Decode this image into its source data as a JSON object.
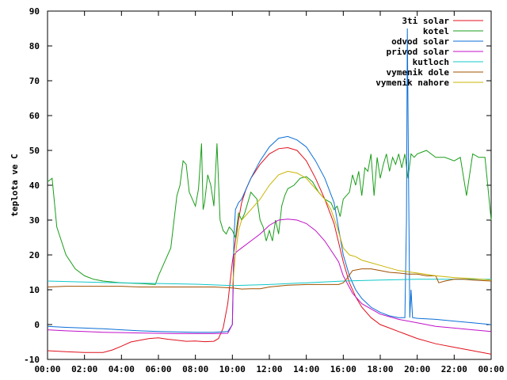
{
  "chart_data": {
    "type": "line",
    "title": "",
    "xlabel": "",
    "ylabel": "teplota ve C",
    "xlim": [
      "00:00",
      "24:00"
    ],
    "ylim": [
      -10,
      90
    ],
    "x_ticks": [
      "00:00",
      "02:00",
      "04:00",
      "06:00",
      "08:00",
      "10:00",
      "12:00",
      "14:00",
      "16:00",
      "18:00",
      "20:00",
      "22:00",
      "00:00"
    ],
    "y_ticks": [
      "-10",
      "0",
      "10",
      "20",
      "30",
      "40",
      "50",
      "60",
      "70",
      "80",
      "90"
    ],
    "grid": false,
    "legend_position": "top-right",
    "series": [
      {
        "name": "3ti solar",
        "color": "#e0101c",
        "x": [
          "00:00",
          "01:00",
          "02:00",
          "03:00",
          "03:30",
          "04:00",
          "04:30",
          "05:00",
          "05:30",
          "06:00",
          "06:30",
          "07:00",
          "07:30",
          "08:00",
          "08:30",
          "09:00",
          "09:15",
          "09:30",
          "09:45",
          "10:00",
          "10:10",
          "10:20",
          "10:30",
          "10:45",
          "11:00",
          "11:30",
          "12:00",
          "12:30",
          "13:00",
          "13:30",
          "14:00",
          "14:30",
          "15:00",
          "15:30",
          "16:00",
          "16:20",
          "16:40",
          "17:00",
          "17:30",
          "18:00",
          "18:30",
          "19:00",
          "20:00",
          "21:00",
          "22:00",
          "23:00",
          "24:00"
        ],
        "values": [
          -7.5,
          -7.8,
          -8.0,
          -8.0,
          -7.3,
          -6.2,
          -5.0,
          -4.5,
          -4.0,
          -3.8,
          -4.2,
          -4.5,
          -4.8,
          -4.7,
          -4.9,
          -4.8,
          -4.0,
          -1.0,
          6.0,
          18.0,
          24.0,
          30.0,
          35.0,
          39.0,
          42.0,
          46.0,
          49.0,
          50.5,
          50.8,
          50.0,
          47.0,
          42.0,
          36.0,
          29.0,
          18.0,
          12.0,
          8.0,
          5.0,
          2.0,
          0.0,
          -1.0,
          -2.0,
          -4.0,
          -5.5,
          -6.5,
          -7.5,
          -8.5
        ]
      },
      {
        "name": "kotel",
        "color": "#1a9e1a",
        "x": [
          "00:00",
          "00:15",
          "00:30",
          "01:00",
          "01:30",
          "02:00",
          "02:30",
          "03:00",
          "04:00",
          "05:00",
          "05:50",
          "06:00",
          "06:20",
          "06:40",
          "07:00",
          "07:10",
          "07:20",
          "07:30",
          "07:40",
          "07:50",
          "08:00",
          "08:10",
          "08:20",
          "08:25",
          "08:30",
          "08:40",
          "08:50",
          "09:00",
          "09:10",
          "09:20",
          "09:30",
          "09:40",
          "09:50",
          "10:00",
          "10:10",
          "10:20",
          "10:30",
          "10:40",
          "11:00",
          "11:20",
          "11:30",
          "11:40",
          "11:50",
          "12:00",
          "12:10",
          "12:20",
          "12:30",
          "12:40",
          "12:50",
          "13:00",
          "13:20",
          "13:40",
          "14:00",
          "14:20",
          "14:40",
          "15:00",
          "15:20",
          "15:30",
          "15:40",
          "15:50",
          "16:00",
          "16:10",
          "16:20",
          "16:30",
          "16:40",
          "16:50",
          "17:00",
          "17:10",
          "17:20",
          "17:30",
          "17:40",
          "17:50",
          "18:00",
          "18:10",
          "18:20",
          "18:30",
          "18:40",
          "18:50",
          "19:00",
          "19:10",
          "19:20",
          "19:30",
          "19:40",
          "19:50",
          "20:00",
          "20:30",
          "21:00",
          "21:30",
          "22:00",
          "22:20",
          "22:40",
          "23:00",
          "23:20",
          "23:40",
          "24:00"
        ],
        "values": [
          41.0,
          42.0,
          28.0,
          20.0,
          16.0,
          14.0,
          13.0,
          12.5,
          12.0,
          11.8,
          11.5,
          14.0,
          18.0,
          22.0,
          37.0,
          40.0,
          47.0,
          46.0,
          38.0,
          36.0,
          34.0,
          39.0,
          52.0,
          33.0,
          35.0,
          43.0,
          40.0,
          34.0,
          52.0,
          30.0,
          27.0,
          26.0,
          28.0,
          27.0,
          25.0,
          32.0,
          30.0,
          32.0,
          38.0,
          36.0,
          30.0,
          28.0,
          24.0,
          27.0,
          24.0,
          30.0,
          26.0,
          34.0,
          37.0,
          39.0,
          40.0,
          42.0,
          42.5,
          41.0,
          38.0,
          36.0,
          35.0,
          33.0,
          34.0,
          31.0,
          36.0,
          37.0,
          38.0,
          43.0,
          40.0,
          44.0,
          37.0,
          45.0,
          44.0,
          49.0,
          37.0,
          48.0,
          42.0,
          46.0,
          49.0,
          44.0,
          48.0,
          46.0,
          49.0,
          45.0,
          49.0,
          42.0,
          49.0,
          48.0,
          49.0,
          50.0,
          48.0,
          48.0,
          47.0,
          48.0,
          37.0,
          49.0,
          48.0,
          48.0,
          30.0
        ]
      },
      {
        "name": "odvod solar",
        "color": "#0a6ed8",
        "x": [
          "00:00",
          "01:00",
          "02:00",
          "03:00",
          "04:00",
          "05:00",
          "06:00",
          "07:00",
          "08:00",
          "09:00",
          "09:45",
          "10:00",
          "10:05",
          "10:10",
          "10:20",
          "10:30",
          "10:45",
          "11:00",
          "11:30",
          "12:00",
          "12:30",
          "13:00",
          "13:30",
          "14:00",
          "14:30",
          "15:00",
          "15:30",
          "16:00",
          "16:20",
          "16:40",
          "17:00",
          "17:30",
          "18:00",
          "18:30",
          "19:00",
          "19:20",
          "19:25",
          "19:28",
          "19:32",
          "19:36",
          "19:40",
          "19:45",
          "20:00",
          "21:00",
          "22:00",
          "23:00",
          "24:00"
        ],
        "values": [
          -0.5,
          -0.8,
          -1.0,
          -1.2,
          -1.5,
          -1.8,
          -2.0,
          -2.1,
          -2.2,
          -2.2,
          -2.0,
          0.0,
          25.0,
          33.0,
          35.0,
          36.0,
          39.0,
          42.0,
          47.0,
          51.0,
          53.5,
          54.0,
          53.0,
          51.0,
          47.0,
          42.0,
          35.0,
          20.0,
          14.0,
          10.0,
          7.5,
          5.0,
          3.5,
          2.5,
          2.0,
          2.0,
          30.0,
          85.0,
          40.0,
          2.0,
          10.0,
          2.0,
          1.8,
          1.5,
          1.0,
          0.5,
          0.0
        ]
      },
      {
        "name": "privod solar",
        "color": "#c010c8",
        "x": [
          "00:00",
          "01:00",
          "02:00",
          "03:00",
          "04:00",
          "05:00",
          "06:00",
          "07:00",
          "08:00",
          "09:00",
          "09:45",
          "10:00",
          "10:05",
          "10:15",
          "10:30",
          "11:00",
          "11:30",
          "12:00",
          "12:30",
          "13:00",
          "13:30",
          "14:00",
          "14:30",
          "15:00",
          "15:30",
          "15:45",
          "16:00",
          "16:30",
          "17:00",
          "18:00",
          "19:00",
          "20:00",
          "21:00",
          "22:00",
          "23:00",
          "24:00"
        ],
        "values": [
          -1.5,
          -1.8,
          -2.0,
          -2.2,
          -2.3,
          -2.4,
          -2.5,
          -2.6,
          -2.6,
          -2.6,
          -2.5,
          0.0,
          20.0,
          21.0,
          22.0,
          24.0,
          26.0,
          28.5,
          30.0,
          30.3,
          30.0,
          29.0,
          27.0,
          24.0,
          20.0,
          18.0,
          14.0,
          9.0,
          6.0,
          3.0,
          1.5,
          0.5,
          -0.5,
          -1.0,
          -1.5,
          -2.0
        ]
      },
      {
        "name": "kutloch",
        "color": "#10c8c8",
        "x": [
          "00:00",
          "02:00",
          "04:00",
          "06:00",
          "08:00",
          "10:00",
          "12:00",
          "14:00",
          "16:00",
          "18:00",
          "20:00",
          "22:00",
          "24:00"
        ],
        "values": [
          12.5,
          12.2,
          12.0,
          11.8,
          11.6,
          11.2,
          11.5,
          12.0,
          12.5,
          12.8,
          13.0,
          13.0,
          13.0
        ]
      },
      {
        "name": "vymenik dole",
        "color": "#a05000",
        "x": [
          "00:00",
          "01:00",
          "02:00",
          "03:00",
          "04:00",
          "05:00",
          "06:00",
          "07:00",
          "08:00",
          "09:00",
          "10:00",
          "10:30",
          "11:00",
          "11:30",
          "12:00",
          "13:00",
          "14:00",
          "15:00",
          "15:30",
          "15:45",
          "16:00",
          "16:10",
          "16:30",
          "17:00",
          "17:30",
          "18:00",
          "18:30",
          "19:00",
          "19:30",
          "20:00",
          "20:30",
          "21:00",
          "21:10",
          "21:30",
          "22:00",
          "22:30",
          "23:00",
          "24:00"
        ],
        "values": [
          10.8,
          11.0,
          11.0,
          11.0,
          11.0,
          10.8,
          10.8,
          10.8,
          10.8,
          10.8,
          10.5,
          10.2,
          10.3,
          10.3,
          10.8,
          11.3,
          11.5,
          11.5,
          11.5,
          11.5,
          12.0,
          13.0,
          15.5,
          16.0,
          16.0,
          15.5,
          15.0,
          14.8,
          14.5,
          14.5,
          14.0,
          14.0,
          12.0,
          12.5,
          13.0,
          13.0,
          12.8,
          12.5
        ]
      },
      {
        "name": "vymenik nahore",
        "color": "#c8b400",
        "x": [
          "10:00",
          "10:10",
          "10:20",
          "10:30",
          "11:00",
          "11:30",
          "12:00",
          "12:30",
          "13:00",
          "13:30",
          "14:00",
          "14:30",
          "15:00",
          "15:20",
          "15:40",
          "16:00",
          "16:20",
          "16:40",
          "17:00",
          "18:00",
          "19:00",
          "20:00",
          "21:00",
          "22:00",
          "23:00",
          "24:00"
        ],
        "values": [
          10.5,
          20.0,
          27.0,
          30.0,
          33.0,
          36.0,
          40.0,
          43.0,
          44.0,
          43.5,
          42.0,
          39.0,
          36.0,
          33.0,
          28.0,
          22.0,
          20.0,
          19.5,
          18.5,
          17.0,
          15.5,
          14.8,
          14.0,
          13.5,
          13.2,
          12.8
        ]
      }
    ]
  }
}
